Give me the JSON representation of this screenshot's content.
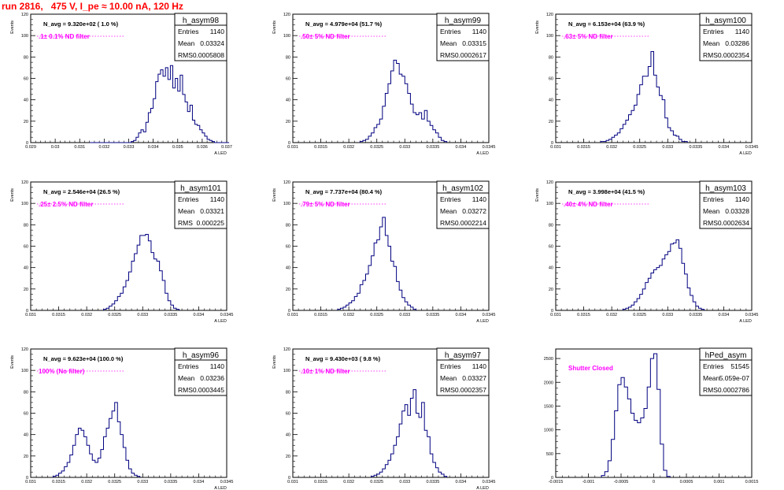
{
  "page": {
    "title": "run 2816,   475 V, I_pe ≈ 10.00 nA, 120 Hz",
    "colors": {
      "title": "#ff0000",
      "annotation": "#ff00ff",
      "histogram": "#000080",
      "frame": "#000000"
    }
  },
  "chart_data": [
    {
      "type": "histogram",
      "name": "h_asym98",
      "stats": {
        "entries_label": "Entries",
        "entries": "1140",
        "mean_label": "Mean",
        "mean": "0.03324",
        "rms_label": "RMS",
        "rms": "0.0005808"
      },
      "navg_text": "N_avg = 9.320e+02 ( 1.0 %)",
      "annotation": ".1± 0.1% ND filter",
      "ylabel": "Events",
      "xlabel": "A_LED",
      "xlim": [
        0.029,
        0.037
      ],
      "ylim": [
        0,
        120
      ],
      "xticks": [
        0.029,
        0.03,
        0.031,
        0.032,
        0.033,
        0.034,
        0.035,
        0.036,
        0.037
      ],
      "xtick_labels": [
        "0.029",
        "0.03",
        "0.031",
        "0.032",
        "0.033",
        "0.034",
        "0.035",
        "0.036",
        "0.037"
      ],
      "yticks": [
        0,
        20,
        40,
        60,
        80,
        100,
        120
      ],
      "bins": {
        "lo": 0.0314,
        "width": 0.0001,
        "counts": [
          0,
          0,
          0,
          0,
          0,
          0,
          0,
          0,
          0,
          0,
          0,
          0,
          0,
          0,
          0,
          0,
          0,
          1,
          2,
          5,
          9,
          12,
          10,
          19,
          28,
          32,
          41,
          57,
          64,
          68,
          62,
          70,
          59,
          72,
          51,
          60,
          48,
          63,
          45,
          38,
          29,
          35,
          21,
          17,
          16,
          12,
          9,
          6,
          3,
          2,
          1,
          0,
          0,
          0,
          0,
          0,
          0
        ]
      }
    },
    {
      "type": "histogram",
      "name": "h_asym99",
      "stats": {
        "entries_label": "Entries",
        "entries": "1140",
        "mean_label": "Mean",
        "mean": "0.03315",
        "rms_label": "RMS",
        "rms": "0.0002617"
      },
      "navg_text": "N_avg = 4.979e+04 (51.7 %)",
      "annotation": ".50± 5% ND filter",
      "ylabel": "Events",
      "xlabel": "A_LED",
      "xlim": [
        0.031,
        0.0345
      ],
      "ylim": [
        0,
        120
      ],
      "xticks": [
        0.031,
        0.0315,
        0.032,
        0.0325,
        0.033,
        0.0335,
        0.034,
        0.0345
      ],
      "xtick_labels": [
        "0.031",
        "0.0315",
        "0.032",
        "0.0325",
        "0.033",
        "0.0335",
        "0.034",
        "0.0345"
      ],
      "yticks": [
        0,
        20,
        40,
        60,
        80,
        100,
        120
      ],
      "bins": {
        "lo": 0.0322,
        "width": 5e-05,
        "counts": [
          1,
          2,
          3,
          6,
          9,
          14,
          17,
          22,
          34,
          46,
          55,
          67,
          77,
          74,
          64,
          62,
          55,
          46,
          36,
          28,
          26,
          28,
          22,
          30,
          20,
          16,
          12,
          9,
          5,
          2,
          1
        ]
      }
    },
    {
      "type": "histogram",
      "name": "h_asym100",
      "stats": {
        "entries_label": "Entries",
        "entries": "1140",
        "mean_label": "Mean",
        "mean": "0.03286",
        "rms_label": "RMS",
        "rms": "0.0002354"
      },
      "navg_text": "N_avg = 6.153e+04 (63.9 %)",
      "annotation": ".63± 5% ND filter",
      "ylabel": "Events",
      "xlabel": "A_LED",
      "xlim": [
        0.031,
        0.0345
      ],
      "ylim": [
        0,
        120
      ],
      "xticks": [
        0.031,
        0.0315,
        0.032,
        0.0325,
        0.033,
        0.0335,
        0.034,
        0.0345
      ],
      "xtick_labels": [
        "0.031",
        "0.0315",
        "0.032",
        "0.0325",
        "0.033",
        "0.0335",
        "0.034",
        "0.0345"
      ],
      "yticks": [
        0,
        20,
        40,
        60,
        80,
        100,
        120
      ],
      "bins": {
        "lo": 0.0318,
        "width": 5e-05,
        "counts": [
          1,
          1,
          2,
          3,
          5,
          7,
          9,
          13,
          17,
          21,
          26,
          30,
          35,
          45,
          54,
          62,
          62,
          71,
          85,
          63,
          52,
          44,
          40,
          23,
          14,
          11,
          7,
          6,
          3,
          1,
          1
        ]
      }
    },
    {
      "type": "histogram",
      "name": "h_asym101",
      "stats": {
        "entries_label": "Entries",
        "entries": "1140",
        "mean_label": "Mean",
        "mean": "0.03321",
        "rms_label": "RMS",
        "rms": "0.000225"
      },
      "navg_text": "N_avg = 2.546e+04 (26.5 %)",
      "annotation": ".25± 2.5% ND filter",
      "ylabel": "Events",
      "xlabel": "A_LED",
      "xlim": [
        0.031,
        0.0345
      ],
      "ylim": [
        0,
        120
      ],
      "xticks": [
        0.031,
        0.0315,
        0.032,
        0.0325,
        0.033,
        0.0335,
        0.034,
        0.0345
      ],
      "xtick_labels": [
        "0.031",
        "0.0315",
        "0.032",
        "0.0325",
        "0.033",
        "0.0335",
        "0.034",
        "0.0345"
      ],
      "yticks": [
        0,
        20,
        40,
        60,
        80,
        100,
        120
      ],
      "bins": {
        "lo": 0.0323,
        "width": 5e-05,
        "counts": [
          1,
          2,
          4,
          6,
          9,
          13,
          16,
          22,
          28,
          36,
          46,
          53,
          61,
          70,
          70,
          71,
          65,
          54,
          48,
          46,
          37,
          28,
          16,
          9,
          5,
          2,
          1
        ]
      }
    },
    {
      "type": "histogram",
      "name": "h_asym102",
      "stats": {
        "entries_label": "Entries",
        "entries": "1140",
        "mean_label": "Mean",
        "mean": "0.03272",
        "rms_label": "RMS",
        "rms": "0.0002214"
      },
      "navg_text": "N_avg = 7.737e+04 (80.4 %)",
      "annotation": ".79± 5% ND filter",
      "ylabel": "Events",
      "xlabel": "A_LED",
      "xlim": [
        0.031,
        0.0345
      ],
      "ylim": [
        0,
        120
      ],
      "xticks": [
        0.031,
        0.0315,
        0.032,
        0.0325,
        0.033,
        0.0335,
        0.034,
        0.0345
      ],
      "xtick_labels": [
        "0.031",
        "0.0315",
        "0.032",
        "0.0325",
        "0.033",
        "0.0335",
        "0.034",
        "0.0345"
      ],
      "yticks": [
        0,
        20,
        40,
        60,
        80,
        100,
        120
      ],
      "bins": {
        "lo": 0.0318,
        "width": 5e-05,
        "counts": [
          1,
          2,
          3,
          5,
          7,
          9,
          13,
          16,
          24,
          28,
          34,
          42,
          51,
          63,
          66,
          78,
          87,
          70,
          60,
          46,
          41,
          27,
          19,
          12,
          8,
          5,
          3,
          1
        ]
      }
    },
    {
      "type": "histogram",
      "name": "h_asym103",
      "stats": {
        "entries_label": "Entries",
        "entries": "1140",
        "mean_label": "Mean",
        "mean": "0.03328",
        "rms_label": "RMS",
        "rms": "0.0002634"
      },
      "navg_text": "N_avg = 3.998e+04 (41.5 %)",
      "annotation": ".40± 4% ND filter",
      "ylabel": "Events",
      "xlabel": "A_LED",
      "xlim": [
        0.031,
        0.0345
      ],
      "ylim": [
        0,
        120
      ],
      "xticks": [
        0.031,
        0.0315,
        0.032,
        0.0325,
        0.033,
        0.0335,
        0.034,
        0.0345
      ],
      "xtick_labels": [
        "0.031",
        "0.0315",
        "0.032",
        "0.0325",
        "0.033",
        "0.0335",
        "0.034",
        "0.0345"
      ],
      "yticks": [
        0,
        20,
        40,
        60,
        80,
        100,
        120
      ],
      "bins": {
        "lo": 0.0322,
        "width": 5e-05,
        "counts": [
          1,
          2,
          3,
          5,
          8,
          11,
          15,
          20,
          26,
          30,
          35,
          38,
          40,
          42,
          48,
          52,
          55,
          62,
          63,
          66,
          58,
          44,
          34,
          21,
          14,
          8,
          4,
          2,
          1
        ]
      }
    },
    {
      "type": "histogram",
      "name": "h_asym96",
      "stats": {
        "entries_label": "Entries",
        "entries": "1140",
        "mean_label": "Mean",
        "mean": "0.03236",
        "rms_label": "RMS",
        "rms": "0.0003445"
      },
      "navg_text": "N_avg = 9.623e+04 (100.0 %)",
      "annotation": "100% (No filter)",
      "ylabel": "Events",
      "xlabel": "A_LED",
      "xlim": [
        0.031,
        0.0345
      ],
      "ylim": [
        0,
        120
      ],
      "xticks": [
        0.031,
        0.0315,
        0.032,
        0.0325,
        0.033,
        0.0335,
        0.034,
        0.0345
      ],
      "xtick_labels": [
        "0.031",
        "0.0315",
        "0.032",
        "0.0325",
        "0.033",
        "0.0335",
        "0.034",
        "0.0345"
      ],
      "yticks": [
        0,
        20,
        40,
        60,
        80,
        100,
        120
      ],
      "bins": {
        "lo": 0.0314,
        "width": 5e-05,
        "counts": [
          1,
          2,
          4,
          6,
          10,
          14,
          21,
          30,
          40,
          46,
          44,
          38,
          30,
          22,
          16,
          14,
          18,
          26,
          38,
          46,
          55,
          62,
          70,
          52,
          40,
          28,
          16,
          8,
          4,
          2,
          1
        ]
      }
    },
    {
      "type": "histogram",
      "name": "h_asym97",
      "stats": {
        "entries_label": "Entries",
        "entries": "1140",
        "mean_label": "Mean",
        "mean": "0.03327",
        "rms_label": "RMS",
        "rms": "0.0002357"
      },
      "navg_text": "N_avg = 9.430e+03 ( 9.8 %)",
      "annotation": ".10± 1% ND filter",
      "ylabel": "Events",
      "xlabel": "A_LED",
      "xlim": [
        0.031,
        0.0345
      ],
      "ylim": [
        0,
        120
      ],
      "xticks": [
        0.031,
        0.0315,
        0.032,
        0.0325,
        0.033,
        0.0335,
        0.034,
        0.0345
      ],
      "xtick_labels": [
        "0.031",
        "0.0315",
        "0.032",
        "0.0325",
        "0.033",
        "0.0335",
        "0.034",
        "0.0345"
      ],
      "yticks": [
        0,
        20,
        40,
        60,
        80,
        100,
        120
      ],
      "bins": {
        "lo": 0.0324,
        "width": 5e-05,
        "counts": [
          1,
          2,
          3,
          5,
          8,
          12,
          16,
          22,
          30,
          38,
          50,
          62,
          68,
          58,
          74,
          82,
          60,
          56,
          70,
          44,
          38,
          22,
          14,
          9,
          5,
          3,
          1
        ]
      }
    },
    {
      "type": "histogram",
      "name": "hPed_asym",
      "stats": {
        "entries_label": "Entries",
        "entries": "51545",
        "mean_label": "Mean",
        "mean": "5.059e-07",
        "rms_label": "RMS",
        "rms": "0.0002786"
      },
      "navg_text": "",
      "annotation": "Shutter Closed",
      "ylabel": "",
      "xlabel": "",
      "xlim": [
        -0.0015,
        0.0015
      ],
      "ylim": [
        0,
        2700
      ],
      "xticks": [
        -0.0015,
        -0.001,
        -0.0005,
        0,
        0.0005,
        0.001,
        0.0015
      ],
      "xtick_labels": [
        "-0.0015",
        "-0.001",
        "-0.0005",
        "0",
        "0.0005",
        "0.001",
        "0.0015"
      ],
      "yticks": [
        0,
        500,
        1000,
        1500,
        2000,
        2500
      ],
      "bins": {
        "lo": -0.0008,
        "width": 5e-05,
        "counts": [
          40,
          120,
          350,
          800,
          1400,
          1950,
          2100,
          1900,
          1650,
          1350,
          1200,
          1150,
          1250,
          1450,
          1900,
          2500,
          2600,
          1850,
          700,
          150,
          20
        ]
      }
    }
  ]
}
